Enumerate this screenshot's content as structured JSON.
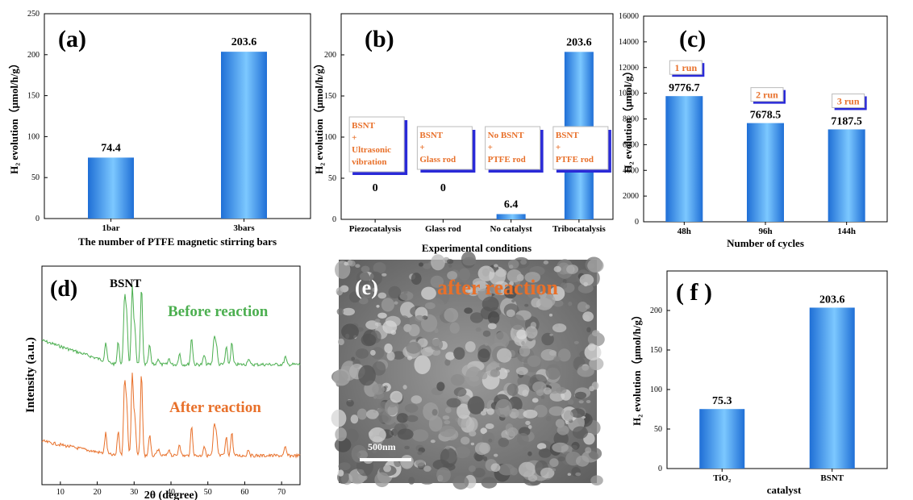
{
  "colors": {
    "bar_dark": "#1f6fd6",
    "bar_light": "#7cc8ff",
    "orange": "#e8702a",
    "green": "#4caf50",
    "callout_shadow": "#2a2ad8",
    "sem_bg": "#7a7a7a"
  },
  "chart_data": [
    {
      "id": "a",
      "type": "bar",
      "panel_label": "(a)",
      "categories": [
        "1bar",
        "3bars"
      ],
      "values": [
        74.4,
        203.6
      ],
      "value_labels": [
        "74.4",
        "203.6"
      ],
      "xlabel": "The number of PTFE magnetic stirring bars",
      "ylabel": "H₂ evolution（μmol/h/g）",
      "ylim": [
        0,
        250
      ],
      "yticks": [
        0,
        50,
        100,
        150,
        200,
        250
      ]
    },
    {
      "id": "b",
      "type": "bar",
      "panel_label": "(b)",
      "categories": [
        "Piezocatalysis",
        "Glass rod",
        "No catalyst",
        "Tribocatalysis"
      ],
      "values": [
        0,
        0,
        6.4,
        203.6
      ],
      "value_labels": [
        "0",
        "0",
        "6.4",
        "203.6"
      ],
      "annotations": [
        [
          "BSNT",
          "+",
          "Ultrasonic",
          "vibration"
        ],
        [
          "BSNT",
          "+",
          "Glass rod"
        ],
        [
          "No BSNT",
          "+",
          "PTFE rod"
        ],
        [
          "BSNT",
          "+",
          "PTFE rod"
        ]
      ],
      "xlabel": "Experimental conditions",
      "ylabel": "H₂ evolution（μmol/h/g）",
      "ylim": [
        0,
        250
      ],
      "yticks": [
        0,
        50,
        100,
        150,
        200
      ]
    },
    {
      "id": "c",
      "type": "bar",
      "panel_label": "(c)",
      "categories": [
        "48h",
        "96h",
        "144h"
      ],
      "values": [
        9776.7,
        7678.5,
        7187.5
      ],
      "value_labels": [
        "9776.7",
        "7678.5",
        "7187.5"
      ],
      "run_labels": [
        "1 run",
        "2 run",
        "3 run"
      ],
      "xlabel": "Number of cycles",
      "ylabel": "H₂ evolution（μmol/g）",
      "ylim": [
        0,
        16000
      ],
      "yticks": [
        0,
        2000,
        4000,
        6000,
        8000,
        10000,
        12000,
        14000,
        16000
      ]
    },
    {
      "id": "d",
      "type": "line",
      "panel_label": "(d)",
      "sample_label": "BSNT",
      "xlabel": "2θ (degree)",
      "ylabel": "Intensity (a.u.)",
      "xlim": [
        5,
        75
      ],
      "xticks": [
        10,
        20,
        30,
        40,
        50,
        60,
        70
      ],
      "peaks_2theta": [
        22.3,
        25.7,
        27.4,
        28.0,
        29.5,
        30.2,
        32.0,
        34.2,
        36.5,
        39.5,
        42.3,
        45.6,
        49.0,
        51.7,
        52.3,
        55.0,
        56.5,
        61.0,
        71.0
      ],
      "peak_heights": [
        0.25,
        0.3,
        0.85,
        0.6,
        1.0,
        0.45,
        1.0,
        0.25,
        0.08,
        0.08,
        0.15,
        0.35,
        0.12,
        0.35,
        0.25,
        0.22,
        0.28,
        0.08,
        0.1
      ],
      "series": [
        {
          "name": "Before reaction"
        },
        {
          "name": "After reaction"
        }
      ]
    },
    {
      "id": "f",
      "type": "bar",
      "panel_label": "( f )",
      "categories": [
        "TiO₂",
        "BSNT"
      ],
      "values": [
        75.3,
        203.6
      ],
      "value_labels": [
        "75.3",
        "203.6"
      ],
      "xlabel": "catalyst",
      "ylabel": "H₂ evolution（μmol/h/g）",
      "ylim": [
        0,
        250
      ],
      "yticks": [
        0,
        50,
        100,
        150,
        200
      ]
    }
  ],
  "sem": {
    "panel_label": "(e)",
    "caption": "after reaction",
    "scale_label": "500nm"
  }
}
